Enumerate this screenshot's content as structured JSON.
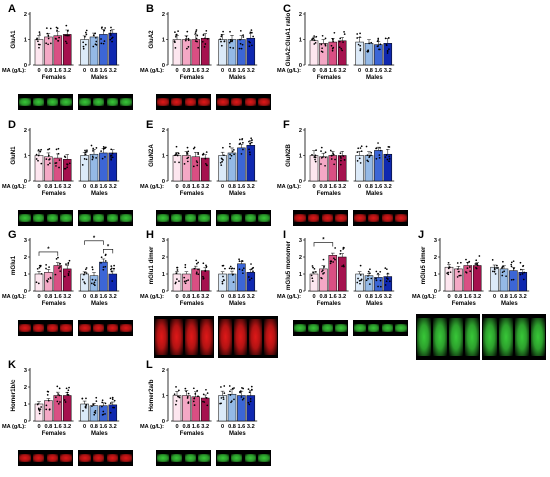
{
  "colors": {
    "female": [
      "#fde6ef",
      "#f4a8c5",
      "#d94f83",
      "#a5124e"
    ],
    "male": [
      "#dceaf8",
      "#94b9e6",
      "#3c66d6",
      "#0f28b0"
    ],
    "green_band": "#38c838",
    "red_band": "#e01818"
  },
  "common": {
    "ma_label": "MA (g/L):",
    "doses": [
      "0",
      "0.8",
      "1.6",
      "3.2"
    ],
    "females": "Females",
    "males": "Males"
  },
  "chart_data": [
    {
      "type": "bar",
      "letter": "A",
      "ylabel": "GluA1",
      "ylim": [
        0,
        2
      ],
      "yticks": [
        "0",
        "1",
        "2"
      ],
      "blot": "green",
      "series": [
        {
          "name": "Females",
          "values": [
            1.0,
            1.1,
            1.15,
            1.2
          ]
        },
        {
          "name": "Males",
          "values": [
            1.0,
            1.1,
            1.2,
            1.25
          ]
        }
      ],
      "sig": []
    },
    {
      "type": "bar",
      "letter": "B",
      "ylabel": "GluA2",
      "ylim": [
        0,
        2
      ],
      "yticks": [
        "0",
        "1",
        "2"
      ],
      "blot": "red",
      "series": [
        {
          "name": "Females",
          "values": [
            1.0,
            1.0,
            1.0,
            1.05
          ]
        },
        {
          "name": "Males",
          "values": [
            1.0,
            1.0,
            1.0,
            1.05
          ]
        }
      ],
      "sig": []
    },
    {
      "type": "bar",
      "letter": "C",
      "ylabel": "GluA2:GluA1 ratio",
      "ylim": [
        0,
        2
      ],
      "yticks": [
        "0",
        "1",
        "2"
      ],
      "blot": "none",
      "series": [
        {
          "name": "Females",
          "values": [
            0.95,
            0.85,
            0.9,
            0.95
          ]
        },
        {
          "name": "Males",
          "values": [
            0.9,
            0.85,
            0.8,
            0.85
          ]
        }
      ],
      "sig": []
    },
    {
      "type": "bar",
      "letter": "D",
      "ylabel": "GluN1",
      "ylim": [
        0,
        2
      ],
      "yticks": [
        "0",
        "1",
        "2"
      ],
      "blot": "green",
      "series": [
        {
          "name": "Females",
          "values": [
            1.0,
            0.95,
            0.9,
            0.85
          ]
        },
        {
          "name": "Males",
          "values": [
            1.0,
            1.05,
            1.1,
            1.1
          ]
        }
      ],
      "sig": []
    },
    {
      "type": "bar",
      "letter": "E",
      "ylabel": "GluN2A",
      "ylim": [
        0,
        2
      ],
      "yticks": [
        "0",
        "1",
        "2"
      ],
      "blot": "green",
      "series": [
        {
          "name": "Females",
          "values": [
            1.0,
            1.0,
            0.95,
            0.9
          ]
        },
        {
          "name": "Males",
          "values": [
            1.0,
            1.1,
            1.3,
            1.4
          ]
        }
      ],
      "sig": []
    },
    {
      "type": "bar",
      "letter": "F",
      "ylabel": "GluN2B",
      "ylim": [
        0,
        2
      ],
      "yticks": [
        "0",
        "1",
        "2"
      ],
      "blot": "red",
      "series": [
        {
          "name": "Females",
          "values": [
            1.0,
            0.95,
            1.0,
            1.0
          ]
        },
        {
          "name": "Males",
          "values": [
            1.0,
            1.0,
            1.2,
            1.05
          ]
        }
      ],
      "sig": []
    },
    {
      "type": "bar",
      "letter": "G",
      "ylabel": "mGlu1",
      "ylim": [
        0,
        3
      ],
      "yticks": [
        "0",
        "1",
        "2",
        "3"
      ],
      "blot": "red",
      "series": [
        {
          "name": "Females",
          "values": [
            1.0,
            1.1,
            1.5,
            1.3
          ]
        },
        {
          "name": "Males",
          "values": [
            1.0,
            0.9,
            1.7,
            1.0
          ]
        }
      ],
      "sig": [
        "*",
        "*",
        "*"
      ]
    },
    {
      "type": "bar",
      "letter": "H",
      "ylabel": "mGlu1 dimer",
      "ylim": [
        0,
        3
      ],
      "yticks": [
        "0",
        "1",
        "2",
        "3"
      ],
      "blot": "red-big",
      "series": [
        {
          "name": "Females",
          "values": [
            1.0,
            1.0,
            1.3,
            1.2
          ]
        },
        {
          "name": "Males",
          "values": [
            1.0,
            1.0,
            1.6,
            1.1
          ]
        }
      ],
      "sig": []
    },
    {
      "type": "bar",
      "letter": "I",
      "ylabel": "mGlu5 monomer",
      "ylim": [
        0,
        3
      ],
      "yticks": [
        "0",
        "1",
        "2",
        "3"
      ],
      "blot": "green",
      "series": [
        {
          "name": "Females",
          "values": [
            1.0,
            1.3,
            2.1,
            2.0
          ]
        },
        {
          "name": "Males",
          "values": [
            1.0,
            0.9,
            0.8,
            0.85
          ]
        }
      ],
      "sig": [
        "*"
      ]
    },
    {
      "type": "bar",
      "letter": "J",
      "ylabel": "mGlu5 dimer",
      "ylim": [
        0,
        3
      ],
      "yticks": [
        "0",
        "1",
        "2",
        "3"
      ],
      "blot": "green-big",
      "series": [
        {
          "name": "Females",
          "values": [
            1.4,
            1.3,
            1.5,
            1.5
          ]
        },
        {
          "name": "Males",
          "values": [
            1.4,
            1.3,
            1.2,
            1.1
          ]
        }
      ],
      "sig": []
    },
    {
      "type": "bar",
      "letter": "K",
      "ylabel": "Homer1b/c",
      "ylim": [
        0,
        3
      ],
      "yticks": [
        "0",
        "1",
        "2",
        "3"
      ],
      "blot": "red",
      "series": [
        {
          "name": "Females",
          "values": [
            1.0,
            1.2,
            1.5,
            1.5
          ]
        },
        {
          "name": "Males",
          "values": [
            1.0,
            0.9,
            0.9,
            0.95
          ]
        }
      ],
      "sig": []
    },
    {
      "type": "bar",
      "letter": "L",
      "ylabel": "Homer2a/b",
      "ylim": [
        0,
        2
      ],
      "yticks": [
        "0",
        "1",
        "2"
      ],
      "blot": "green",
      "series": [
        {
          "name": "Females",
          "values": [
            1.0,
            1.0,
            0.95,
            0.9
          ]
        },
        {
          "name": "Males",
          "values": [
            1.0,
            1.05,
            1.0,
            1.0
          ]
        }
      ],
      "sig": []
    }
  ]
}
